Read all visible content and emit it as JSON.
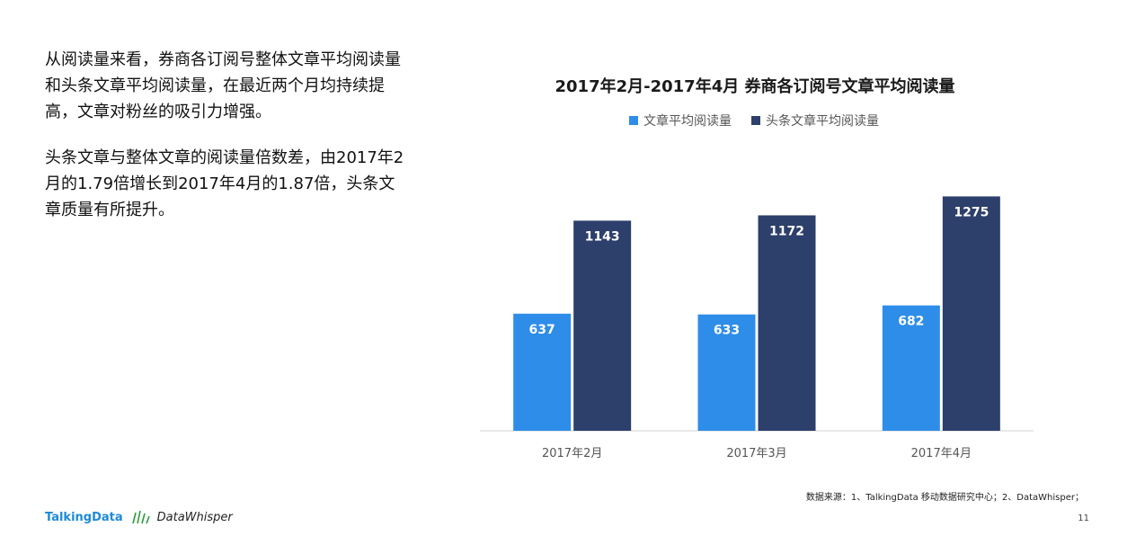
{
  "left_text": {
    "paragraph1": "从阅读量来看，券商各订阅号整体文章平均阅读量和头条文章平均阅读量，在最近两个月均持续提高，文章对粉丝的吸引力增强。",
    "paragraph2": "头条文章与整体文章的阅读量倍数差，由2017年2月的1.79倍增长到2017年4月的1.87倍，头条文章质量有所提升。"
  },
  "chart_data": {
    "type": "bar",
    "title": "2017年2月-2017年4月 券商各订阅号文章平均阅读量",
    "categories": [
      "2017年2月",
      "2017年3月",
      "2017年4月"
    ],
    "series": [
      {
        "name": "文章平均阅读量",
        "values": [
          637,
          633,
          682
        ],
        "color": "#2e8de8"
      },
      {
        "name": "头条文章平均阅读量",
        "values": [
          1143,
          1172,
          1275
        ],
        "color": "#2d3f6b"
      }
    ],
    "ylim": [
      0,
      1400
    ],
    "legend": "top",
    "grid": false
  },
  "footer": {
    "source": "数据来源：1、TalkingData 移动数据研究中心；2、DataWhisper；",
    "page_number": "11",
    "logo_talkingdata": "TalkingData",
    "logo_datawhisper": "DataWhisper"
  }
}
